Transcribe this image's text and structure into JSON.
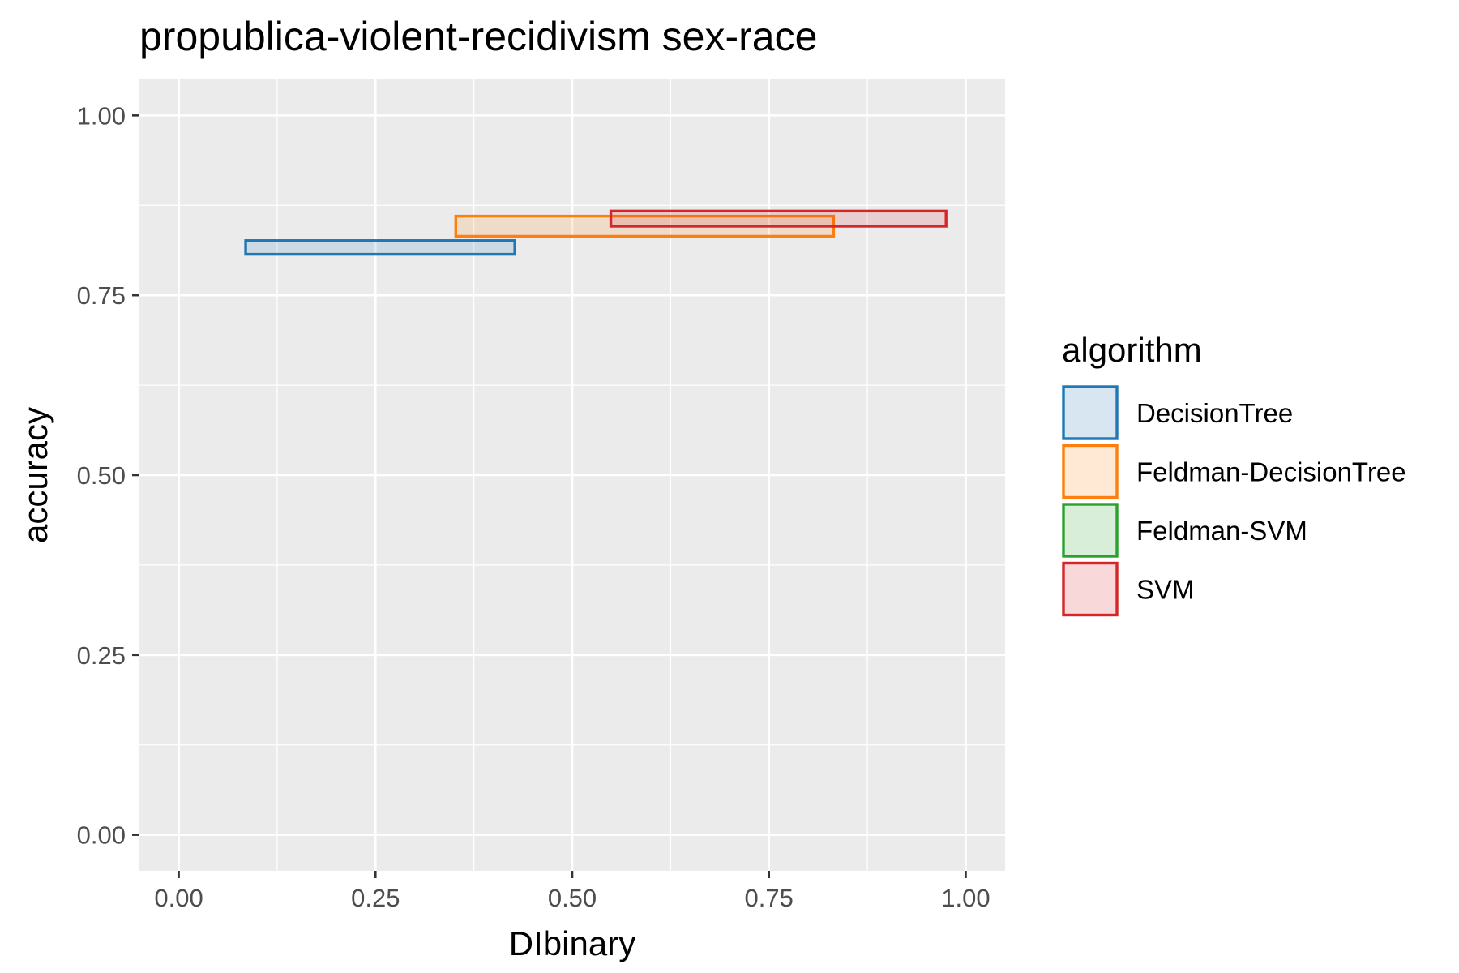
{
  "chart_data": {
    "type": "rect",
    "title": "propublica-violent-recidivism sex-race",
    "xlabel": "DIbinary",
    "ylabel": "accuracy",
    "xlim": [
      -0.05,
      1.05
    ],
    "ylim": [
      -0.05,
      1.05
    ],
    "x_ticks": [
      0.0,
      0.25,
      0.5,
      0.75,
      1.0
    ],
    "x_tick_labels": [
      "0.00",
      "0.25",
      "0.50",
      "0.75",
      "1.00"
    ],
    "y_ticks": [
      0.0,
      0.25,
      0.5,
      0.75,
      1.0
    ],
    "y_tick_labels": [
      "0.00",
      "0.25",
      "0.50",
      "0.75",
      "1.00"
    ],
    "grid": true,
    "legend_title": "algorithm",
    "legend_position": "right",
    "series": [
      {
        "name": "DecisionTree",
        "color": "#1f77b4",
        "xmin": 0.085,
        "xmax": 0.427,
        "ymin": 0.807,
        "ymax": 0.826
      },
      {
        "name": "Feldman-DecisionTree",
        "color": "#ff7f0e",
        "xmin": 0.352,
        "xmax": 0.832,
        "ymin": 0.832,
        "ymax": 0.86
      },
      {
        "name": "Feldman-SVM",
        "color": "#2ca02c"
      },
      {
        "name": "SVM",
        "color": "#d62728",
        "xmin": 0.549,
        "xmax": 0.975,
        "ymin": 0.846,
        "ymax": 0.867
      }
    ]
  }
}
